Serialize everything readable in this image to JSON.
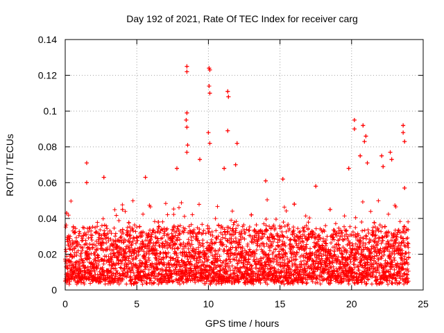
{
  "chart_data": {
    "type": "scatter",
    "title": "Day 192 of 2021, Rate Of TEC Index for receiver carg",
    "xlabel": "GPS time / hours",
    "ylabel": "ROTI / TECUs",
    "xlim": [
      0,
      25
    ],
    "ylim": [
      0,
      0.14
    ],
    "xticks": [
      0,
      5,
      10,
      15,
      20,
      25
    ],
    "yticks": [
      0,
      0.02,
      0.04,
      0.06,
      0.08,
      0.1,
      0.12,
      0.14
    ],
    "xtick_labels": [
      "0",
      "5",
      "10",
      "15",
      "20",
      "25"
    ],
    "ytick_labels": [
      "0",
      "0.02",
      "0.04",
      "0.06",
      "0.08",
      "0.1",
      "0.12",
      "0.14"
    ],
    "grid": true,
    "marker": "+",
    "series_color": "#ff0000",
    "data_range_x": [
      0,
      24
    ],
    "series": [
      {
        "name": "ROTI",
        "notable_points": [
          {
            "x": 8.5,
            "y": 0.125
          },
          {
            "x": 8.5,
            "y": 0.122
          },
          {
            "x": 8.5,
            "y": 0.099
          },
          {
            "x": 8.45,
            "y": 0.095
          },
          {
            "x": 8.5,
            "y": 0.091
          },
          {
            "x": 8.55,
            "y": 0.081
          },
          {
            "x": 8.5,
            "y": 0.077
          },
          {
            "x": 10.05,
            "y": 0.124
          },
          {
            "x": 10.1,
            "y": 0.123
          },
          {
            "x": 10.05,
            "y": 0.114
          },
          {
            "x": 10.1,
            "y": 0.11
          },
          {
            "x": 10.0,
            "y": 0.088
          },
          {
            "x": 10.1,
            "y": 0.082
          },
          {
            "x": 11.35,
            "y": 0.111
          },
          {
            "x": 11.4,
            "y": 0.108
          },
          {
            "x": 11.35,
            "y": 0.089
          },
          {
            "x": 12.0,
            "y": 0.082
          },
          {
            "x": 11.9,
            "y": 0.07
          },
          {
            "x": 1.5,
            "y": 0.071
          },
          {
            "x": 1.5,
            "y": 0.06
          },
          {
            "x": 2.7,
            "y": 0.063
          },
          {
            "x": 5.6,
            "y": 0.063
          },
          {
            "x": 7.8,
            "y": 0.068
          },
          {
            "x": 9.4,
            "y": 0.073
          },
          {
            "x": 11.1,
            "y": 0.068
          },
          {
            "x": 14.0,
            "y": 0.061
          },
          {
            "x": 15.2,
            "y": 0.062
          },
          {
            "x": 17.5,
            "y": 0.058
          },
          {
            "x": 19.8,
            "y": 0.068
          },
          {
            "x": 20.2,
            "y": 0.095
          },
          {
            "x": 20.2,
            "y": 0.09
          },
          {
            "x": 20.8,
            "y": 0.092
          },
          {
            "x": 21.0,
            "y": 0.086
          },
          {
            "x": 20.9,
            "y": 0.083
          },
          {
            "x": 20.6,
            "y": 0.075
          },
          {
            "x": 21.1,
            "y": 0.071
          },
          {
            "x": 22.1,
            "y": 0.075
          },
          {
            "x": 22.2,
            "y": 0.069
          },
          {
            "x": 22.7,
            "y": 0.077
          },
          {
            "x": 22.8,
            "y": 0.073
          },
          {
            "x": 23.6,
            "y": 0.092
          },
          {
            "x": 23.6,
            "y": 0.088
          },
          {
            "x": 23.7,
            "y": 0.083
          },
          {
            "x": 23.7,
            "y": 0.057
          },
          {
            "x": 0.1,
            "y": 0.043
          },
          {
            "x": 4.0,
            "y": 0.045
          },
          {
            "x": 6.5,
            "y": 0.038
          },
          {
            "x": 13.0,
            "y": 0.042
          },
          {
            "x": 16.0,
            "y": 0.048
          },
          {
            "x": 18.5,
            "y": 0.045
          }
        ],
        "baseline_band": {
          "low": 0.005,
          "typical": 0.015,
          "high": 0.035
        }
      }
    ]
  }
}
